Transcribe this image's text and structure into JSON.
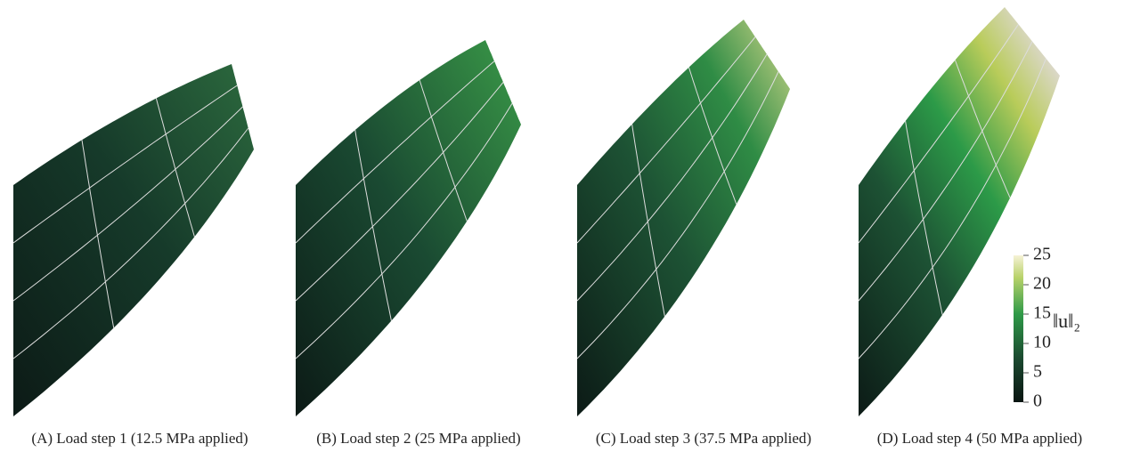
{
  "panels": [
    {
      "caption": "(A) Load step 1 (12.5 MPa applied)"
    },
    {
      "caption": "(B) Load step 2 (25 MPa applied)"
    },
    {
      "caption": "(C) Load step 3 (37.5 MPa applied)"
    },
    {
      "caption": "(D) Load step 4 (50 MPa applied)"
    }
  ],
  "colorbar": {
    "label": "‖u‖₂",
    "range": [
      0,
      25
    ],
    "ticks": [
      0,
      5,
      10,
      15,
      20,
      25
    ]
  }
}
